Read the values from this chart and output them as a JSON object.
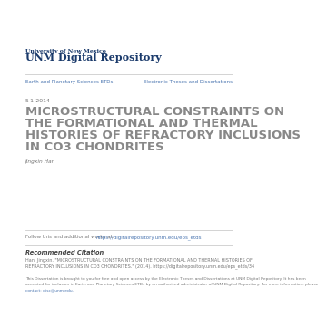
{
  "bg_color": "#ffffff",
  "unm_small": "University of New Mexico",
  "unm_large": "UNM Digital Repository",
  "nav_left": "Earth and Planetary Sciences ETDs",
  "nav_right": "Electronic Theses and Dissertations",
  "date": "5-1-2014",
  "title_line1": "MICROSTRUCTURAL CONSTRAINTS ON",
  "title_line2": "THE FORMATIONAL AND THERMAL",
  "title_line3": "HISTORIES OF REFRACTORY INCLUSIONS",
  "title_line4": "IN CO3 CHONDRITES",
  "author": "Jingxin Han",
  "follow_text": "Follow this and additional works at: ",
  "follow_link": "https://digitalrepository.unm.edu/eps_etds",
  "rec_citation_title": "Recommended Citation",
  "rec_citation_body1": "Han, Jingxin. \"MICROSTRUCTURAL CONSTRAINTS ON THE FORMATIONAL AND THERMAL HISTORIES OF",
  "rec_citation_body2": "REFRACTORY INCLUSIONS IN CO3 CHONDRITES.\" (2014). https://digitalrepository.unm.edu/eps_etds/34",
  "disclaimer1": "This Dissertation is brought to you for free and open access by the Electronic Theses and Dissertations at UNM Digital Repository. It has been",
  "disclaimer2": "accepted for inclusion in Earth and Planetary Sciences ETDs by an authorized administrator of UNM Digital Repository. For more information, please",
  "disclaimer3": "contact: disc@unm.edu.",
  "blue_dark": "#1a3a6b",
  "blue_link": "#4a75b0",
  "text_gray": "#777777",
  "text_dark": "#444444",
  "line_color": "#cccccc",
  "title_color": "#888888"
}
